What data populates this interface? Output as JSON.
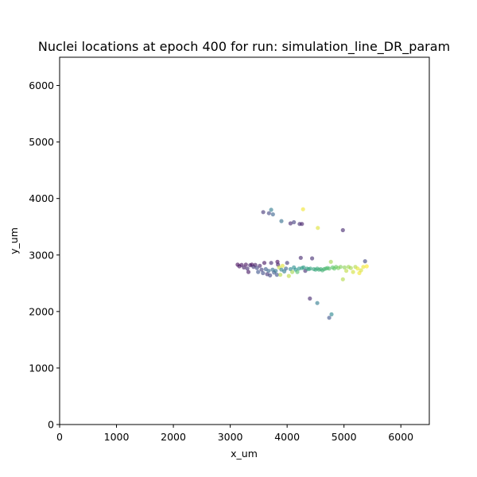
{
  "chart_data": {
    "type": "scatter",
    "title": "Nuclei locations at epoch 400 for run: simulation_line_DR_param",
    "xlabel": "x_um",
    "ylabel": "y_um",
    "xlim": [
      0,
      6500
    ],
    "ylim": [
      0,
      6500
    ],
    "xticks": [
      0,
      1000,
      2000,
      3000,
      4000,
      5000,
      6000
    ],
    "yticks": [
      0,
      1000,
      2000,
      3000,
      4000,
      5000,
      6000
    ],
    "grid": false,
    "colormap": "viridis",
    "point_color": "per-point viridis value (0 = dark purple, 1 = yellow)",
    "points": [
      {
        "x": 3130,
        "y": 2830,
        "c": 0.02
      },
      {
        "x": 3160,
        "y": 2800,
        "c": 0.05
      },
      {
        "x": 3200,
        "y": 2825,
        "c": 0.04
      },
      {
        "x": 3240,
        "y": 2780,
        "c": 0.08
      },
      {
        "x": 3275,
        "y": 2830,
        "c": 0.03
      },
      {
        "x": 3300,
        "y": 2760,
        "c": 0.12
      },
      {
        "x": 3320,
        "y": 2700,
        "c": 0.06
      },
      {
        "x": 3350,
        "y": 2820,
        "c": 0.1
      },
      {
        "x": 3380,
        "y": 2830,
        "c": 0.02
      },
      {
        "x": 3410,
        "y": 2790,
        "c": 0.15
      },
      {
        "x": 3440,
        "y": 2825,
        "c": 0.07
      },
      {
        "x": 3470,
        "y": 2770,
        "c": 0.2
      },
      {
        "x": 3490,
        "y": 2700,
        "c": 0.25
      },
      {
        "x": 3520,
        "y": 2810,
        "c": 0.09
      },
      {
        "x": 3550,
        "y": 2740,
        "c": 0.18
      },
      {
        "x": 3575,
        "y": 2680,
        "c": 0.22
      },
      {
        "x": 3600,
        "y": 2860,
        "c": 0.05
      },
      {
        "x": 3625,
        "y": 2750,
        "c": 0.28
      },
      {
        "x": 3650,
        "y": 2660,
        "c": 0.14
      },
      {
        "x": 3675,
        "y": 2720,
        "c": 0.32
      },
      {
        "x": 3700,
        "y": 2640,
        "c": 0.19
      },
      {
        "x": 3720,
        "y": 2860,
        "c": 0.11
      },
      {
        "x": 3745,
        "y": 2740,
        "c": 0.35
      },
      {
        "x": 3770,
        "y": 2690,
        "c": 0.27
      },
      {
        "x": 3800,
        "y": 2720,
        "c": 0.38
      },
      {
        "x": 3820,
        "y": 2650,
        "c": 0.24
      },
      {
        "x": 3830,
        "y": 2880,
        "c": 0.02
      },
      {
        "x": 3840,
        "y": 2830,
        "c": 0.08
      },
      {
        "x": 3860,
        "y": 2780,
        "c": 0.92
      },
      {
        "x": 3880,
        "y": 2650,
        "c": 0.88
      },
      {
        "x": 3900,
        "y": 2740,
        "c": 0.42
      },
      {
        "x": 3920,
        "y": 2810,
        "c": 0.95
      },
      {
        "x": 3950,
        "y": 2710,
        "c": 0.4
      },
      {
        "x": 3980,
        "y": 2760,
        "c": 0.3
      },
      {
        "x": 4000,
        "y": 2860,
        "c": 0.15
      },
      {
        "x": 4030,
        "y": 2630,
        "c": 0.9
      },
      {
        "x": 4060,
        "y": 2750,
        "c": 0.45
      },
      {
        "x": 4090,
        "y": 2700,
        "c": 0.85
      },
      {
        "x": 4120,
        "y": 2780,
        "c": 0.48
      },
      {
        "x": 4150,
        "y": 2740,
        "c": 0.5
      },
      {
        "x": 4180,
        "y": 2700,
        "c": 0.7
      },
      {
        "x": 4210,
        "y": 2760,
        "c": 0.52
      },
      {
        "x": 4240,
        "y": 2950,
        "c": 0.1
      },
      {
        "x": 4260,
        "y": 2770,
        "c": 0.55
      },
      {
        "x": 4290,
        "y": 2780,
        "c": 0.54
      },
      {
        "x": 4320,
        "y": 2720,
        "c": 0.12
      },
      {
        "x": 4350,
        "y": 2760,
        "c": 0.56
      },
      {
        "x": 4380,
        "y": 2750,
        "c": 0.57
      },
      {
        "x": 4410,
        "y": 2760,
        "c": 0.58
      },
      {
        "x": 4440,
        "y": 2940,
        "c": 0.12
      },
      {
        "x": 4470,
        "y": 2750,
        "c": 0.59
      },
      {
        "x": 4500,
        "y": 2740,
        "c": 0.6
      },
      {
        "x": 4530,
        "y": 2760,
        "c": 0.61
      },
      {
        "x": 4560,
        "y": 2740,
        "c": 0.62
      },
      {
        "x": 4590,
        "y": 2750,
        "c": 0.63
      },
      {
        "x": 4620,
        "y": 2730,
        "c": 0.64
      },
      {
        "x": 4650,
        "y": 2750,
        "c": 0.65
      },
      {
        "x": 4680,
        "y": 2760,
        "c": 0.67
      },
      {
        "x": 4710,
        "y": 2770,
        "c": 0.68
      },
      {
        "x": 4740,
        "y": 2760,
        "c": 0.7
      },
      {
        "x": 4770,
        "y": 2880,
        "c": 0.85
      },
      {
        "x": 4800,
        "y": 2780,
        "c": 0.72
      },
      {
        "x": 4830,
        "y": 2760,
        "c": 0.74
      },
      {
        "x": 4860,
        "y": 2790,
        "c": 0.76
      },
      {
        "x": 4900,
        "y": 2770,
        "c": 0.78
      },
      {
        "x": 4940,
        "y": 2790,
        "c": 0.8
      },
      {
        "x": 4980,
        "y": 2570,
        "c": 0.88
      },
      {
        "x": 5010,
        "y": 2780,
        "c": 0.82
      },
      {
        "x": 5040,
        "y": 2720,
        "c": 0.9
      },
      {
        "x": 5080,
        "y": 2790,
        "c": 0.84
      },
      {
        "x": 5120,
        "y": 2770,
        "c": 0.86
      },
      {
        "x": 5160,
        "y": 2700,
        "c": 0.93
      },
      {
        "x": 5200,
        "y": 2790,
        "c": 0.88
      },
      {
        "x": 5240,
        "y": 2760,
        "c": 0.96
      },
      {
        "x": 5270,
        "y": 2680,
        "c": 0.98
      },
      {
        "x": 5300,
        "y": 2730,
        "c": 0.94
      },
      {
        "x": 5340,
        "y": 2790,
        "c": 0.97
      },
      {
        "x": 5370,
        "y": 2890,
        "c": 0.2
      },
      {
        "x": 5400,
        "y": 2800,
        "c": 1.0
      },
      {
        "x": 3580,
        "y": 3760,
        "c": 0.15
      },
      {
        "x": 3680,
        "y": 3740,
        "c": 0.2
      },
      {
        "x": 3720,
        "y": 3800,
        "c": 0.4
      },
      {
        "x": 3750,
        "y": 3720,
        "c": 0.3
      },
      {
        "x": 3900,
        "y": 3600,
        "c": 0.35
      },
      {
        "x": 4060,
        "y": 3560,
        "c": 0.1
      },
      {
        "x": 4120,
        "y": 3580,
        "c": 0.18
      },
      {
        "x": 4220,
        "y": 3550,
        "c": 0.12
      },
      {
        "x": 4260,
        "y": 3550,
        "c": 0.08
      },
      {
        "x": 4280,
        "y": 3810,
        "c": 0.98
      },
      {
        "x": 4540,
        "y": 3480,
        "c": 0.95
      },
      {
        "x": 4980,
        "y": 3440,
        "c": 0.1
      },
      {
        "x": 4400,
        "y": 2230,
        "c": 0.1
      },
      {
        "x": 4530,
        "y": 2150,
        "c": 0.4
      },
      {
        "x": 4740,
        "y": 1890,
        "c": 0.25
      },
      {
        "x": 4780,
        "y": 1950,
        "c": 0.45
      }
    ]
  }
}
